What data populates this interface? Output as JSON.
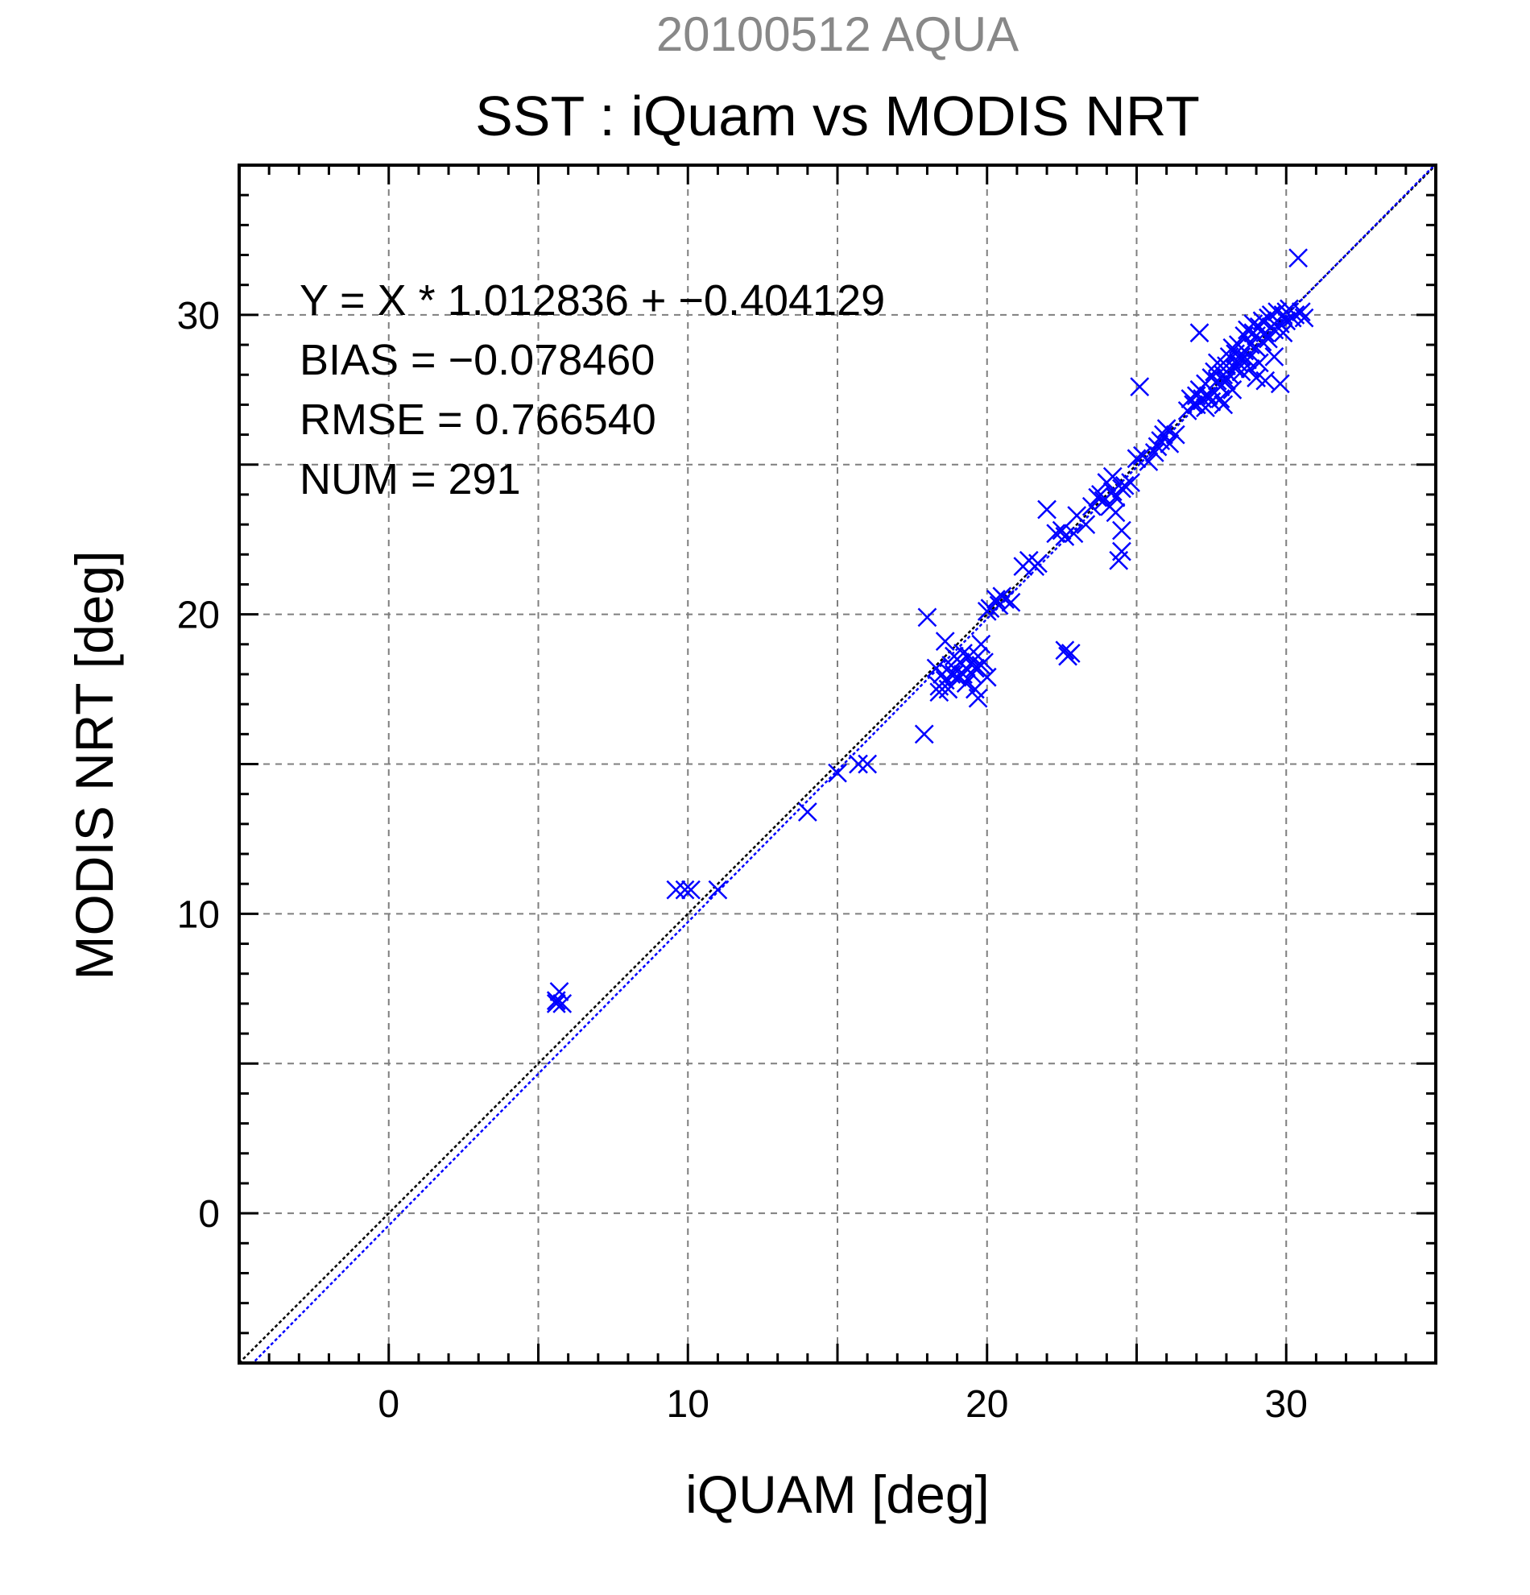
{
  "chart_data": {
    "type": "scatter",
    "suptitle": "20100512 AQUA",
    "title": "SST : iQuam vs MODIS NRT",
    "xlabel": "iQUAM [deg]",
    "ylabel": "MODIS NRT [deg]",
    "xlim": [
      -5,
      35
    ],
    "ylim": [
      -5,
      35
    ],
    "xticks": [
      0,
      10,
      20,
      30
    ],
    "yticks": [
      0,
      10,
      20,
      30
    ],
    "grid_step": 5,
    "minor_step": 1,
    "grid": true,
    "stats": [
      "Y = X * 1.012836 + −0.404129",
      "BIAS = −0.078460",
      "RMSE = 0.766540",
      "NUM = 291"
    ],
    "fit_line": {
      "slope": 1.012836,
      "intercept": -0.404129,
      "color": "#0000ff"
    },
    "identity_line": {
      "slope": 1,
      "intercept": 0,
      "color": "#000000"
    },
    "marker_color": "#0000ff",
    "points": [
      [
        5.6,
        7.0
      ],
      [
        5.7,
        7.4
      ],
      [
        5.8,
        7.0
      ],
      [
        5.6,
        7.1
      ],
      [
        9.6,
        10.8
      ],
      [
        9.9,
        10.8
      ],
      [
        10.1,
        10.8
      ],
      [
        11.0,
        10.8
      ],
      [
        14.0,
        13.4
      ],
      [
        15.0,
        14.7
      ],
      [
        15.7,
        15.0
      ],
      [
        16.0,
        15.0
      ],
      [
        17.9,
        16.0
      ],
      [
        18.0,
        19.9
      ],
      [
        18.3,
        18.2
      ],
      [
        18.4,
        17.6
      ],
      [
        18.4,
        17.4
      ],
      [
        18.5,
        18.0
      ],
      [
        18.6,
        19.1
      ],
      [
        18.6,
        17.8
      ],
      [
        18.7,
        17.5
      ],
      [
        18.8,
        18.3
      ],
      [
        18.8,
        18.0
      ],
      [
        18.9,
        18.6
      ],
      [
        18.9,
        18.0
      ],
      [
        19.0,
        18.5
      ],
      [
        19.0,
        17.9
      ],
      [
        19.1,
        18.4
      ],
      [
        19.2,
        18.7
      ],
      [
        19.2,
        18.0
      ],
      [
        19.3,
        18.2
      ],
      [
        19.3,
        17.7
      ],
      [
        19.4,
        18.6
      ],
      [
        19.5,
        18.4
      ],
      [
        19.5,
        18.0
      ],
      [
        19.6,
        18.2
      ],
      [
        19.6,
        17.5
      ],
      [
        19.7,
        17.2
      ],
      [
        19.7,
        18.6
      ],
      [
        19.8,
        19.0
      ],
      [
        19.8,
        18.3
      ],
      [
        19.9,
        18.4
      ],
      [
        20.0,
        17.9
      ],
      [
        20.0,
        20.1
      ],
      [
        20.1,
        20.2
      ],
      [
        20.3,
        20.5
      ],
      [
        20.4,
        20.3
      ],
      [
        20.5,
        20.6
      ],
      [
        20.6,
        20.5
      ],
      [
        20.8,
        20.4
      ],
      [
        21.2,
        21.6
      ],
      [
        21.4,
        21.8
      ],
      [
        21.6,
        21.6
      ],
      [
        21.7,
        21.7
      ],
      [
        22.0,
        23.5
      ],
      [
        22.3,
        22.7
      ],
      [
        22.5,
        22.8
      ],
      [
        22.6,
        22.6
      ],
      [
        22.6,
        18.8
      ],
      [
        22.7,
        18.6
      ],
      [
        22.8,
        18.7
      ],
      [
        22.9,
        22.7
      ],
      [
        23.0,
        23.3
      ],
      [
        23.3,
        23.0
      ],
      [
        23.5,
        23.6
      ],
      [
        23.7,
        23.9
      ],
      [
        23.8,
        24.0
      ],
      [
        23.9,
        23.8
      ],
      [
        24.0,
        24.4
      ],
      [
        24.1,
        23.6
      ],
      [
        24.2,
        24.6
      ],
      [
        24.2,
        24.1
      ],
      [
        24.3,
        23.9
      ],
      [
        24.3,
        23.4
      ],
      [
        24.4,
        21.8
      ],
      [
        24.5,
        22.1
      ],
      [
        24.5,
        22.8
      ],
      [
        24.5,
        24.2
      ],
      [
        24.6,
        24.3
      ],
      [
        24.8,
        24.4
      ],
      [
        25.0,
        25.2
      ],
      [
        25.1,
        27.6
      ],
      [
        25.2,
        25.3
      ],
      [
        25.4,
        25.1
      ],
      [
        25.6,
        25.4
      ],
      [
        25.7,
        25.6
      ],
      [
        25.8,
        25.8
      ],
      [
        25.9,
        26.0
      ],
      [
        26.0,
        26.2
      ],
      [
        26.1,
        25.7
      ],
      [
        26.3,
        26.0
      ],
      [
        26.7,
        26.8
      ],
      [
        26.8,
        27.2
      ],
      [
        26.9,
        27.0
      ],
      [
        27.0,
        27.3
      ],
      [
        27.0,
        27.0
      ],
      [
        27.1,
        29.4
      ],
      [
        27.1,
        27.5
      ],
      [
        27.2,
        27.2
      ],
      [
        27.3,
        26.9
      ],
      [
        27.3,
        27.7
      ],
      [
        27.4,
        27.3
      ],
      [
        27.5,
        27.9
      ],
      [
        27.5,
        27.1
      ],
      [
        27.6,
        28.1
      ],
      [
        27.6,
        27.4
      ],
      [
        27.7,
        27.8
      ],
      [
        27.7,
        28.4
      ],
      [
        27.8,
        27.6
      ],
      [
        27.8,
        27.2
      ],
      [
        27.9,
        28.0
      ],
      [
        27.9,
        27.0
      ],
      [
        28.0,
        28.3
      ],
      [
        28.0,
        27.8
      ],
      [
        28.1,
        28.6
      ],
      [
        28.1,
        28.0
      ],
      [
        28.2,
        27.5
      ],
      [
        28.2,
        28.9
      ],
      [
        28.3,
        28.2
      ],
      [
        28.3,
        28.7
      ],
      [
        28.4,
        28.4
      ],
      [
        28.4,
        29.0
      ],
      [
        28.5,
        28.6
      ],
      [
        28.5,
        28.1
      ],
      [
        28.6,
        29.3
      ],
      [
        28.6,
        28.8
      ],
      [
        28.7,
        28.5
      ],
      [
        28.7,
        29.5
      ],
      [
        28.8,
        29.0
      ],
      [
        28.8,
        28.2
      ],
      [
        28.9,
        29.4
      ],
      [
        28.9,
        29.7
      ],
      [
        29.0,
        28.9
      ],
      [
        29.0,
        29.3
      ],
      [
        29.0,
        27.9
      ],
      [
        29.1,
        29.6
      ],
      [
        29.1,
        28.4
      ],
      [
        29.2,
        29.1
      ],
      [
        29.2,
        29.8
      ],
      [
        29.3,
        29.4
      ],
      [
        29.3,
        27.8
      ],
      [
        29.4,
        29.9
      ],
      [
        29.4,
        29.2
      ],
      [
        29.5,
        29.6
      ],
      [
        29.5,
        30.0
      ],
      [
        29.6,
        29.5
      ],
      [
        29.6,
        28.6
      ],
      [
        29.7,
        29.8
      ],
      [
        29.7,
        30.1
      ],
      [
        29.8,
        29.7
      ],
      [
        29.8,
        27.7
      ],
      [
        29.9,
        30.0
      ],
      [
        29.9,
        29.4
      ],
      [
        30.0,
        30.1
      ],
      [
        30.0,
        29.8
      ],
      [
        30.1,
        30.2
      ],
      [
        30.2,
        29.9
      ],
      [
        30.3,
        30.0
      ],
      [
        30.4,
        31.9
      ],
      [
        30.5,
        30.1
      ],
      [
        30.6,
        29.9
      ]
    ]
  }
}
